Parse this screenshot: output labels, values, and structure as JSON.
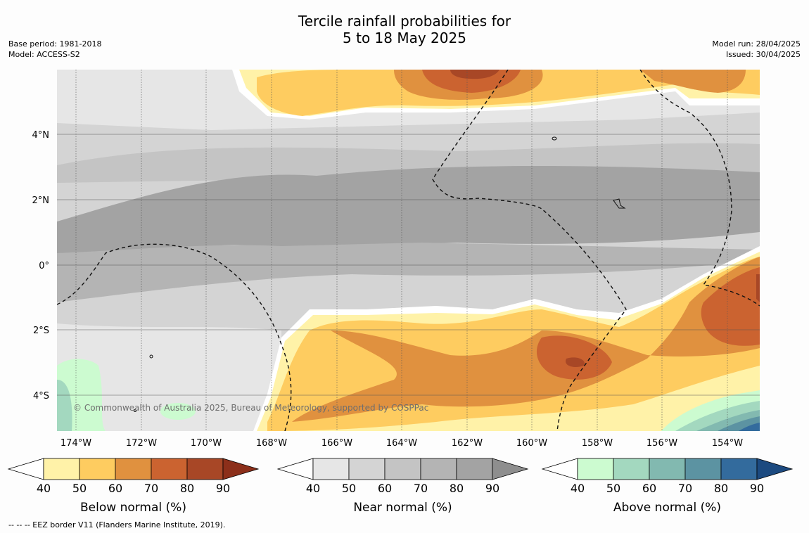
{
  "title_line1": "Tercile rainfall probabilities for",
  "title_line2": "5 to 18 May 2025",
  "base_period": "Base period: 1981-2018",
  "model": "Model: ACCESS-S2",
  "model_run": "Model run: 28/04/2025",
  "issued": "Issued: 30/04/2025",
  "copyright": "© Commonwealth of Australia 2025, Bureau of Meteorology, supported by COSPPac",
  "footer": "-- -- -- EEZ border V11 (Flanders Marine Institute, 2019).",
  "map": {
    "lon_labels": [
      "174°W",
      "172°W",
      "170°W",
      "168°W",
      "166°W",
      "164°W",
      "162°W",
      "160°W",
      "158°W",
      "156°W",
      "154°W"
    ],
    "lat_labels": [
      "4°N",
      "2°N",
      "0°",
      "2°S",
      "4°S"
    ]
  },
  "legends": [
    {
      "label": "Below normal (%)",
      "colors": [
        "#fff2a8",
        "#fecc60",
        "#e0913f",
        "#cb6330",
        "#a84726",
        "#8c2f1a"
      ]
    },
    {
      "label": "Near normal (%)",
      "colors": [
        "#e6e6e6",
        "#d4d4d4",
        "#c4c4c4",
        "#b4b4b4",
        "#a3a3a3",
        "#8e8e8e"
      ]
    },
    {
      "label": "Above normal (%)",
      "colors": [
        "#ccfbd0",
        "#a3d8bf",
        "#82b9b0",
        "#5c93a2",
        "#336b9d",
        "#1c4a80"
      ]
    }
  ],
  "legend_ticks": [
    "40",
    "50",
    "60",
    "70",
    "80",
    "90"
  ]
}
